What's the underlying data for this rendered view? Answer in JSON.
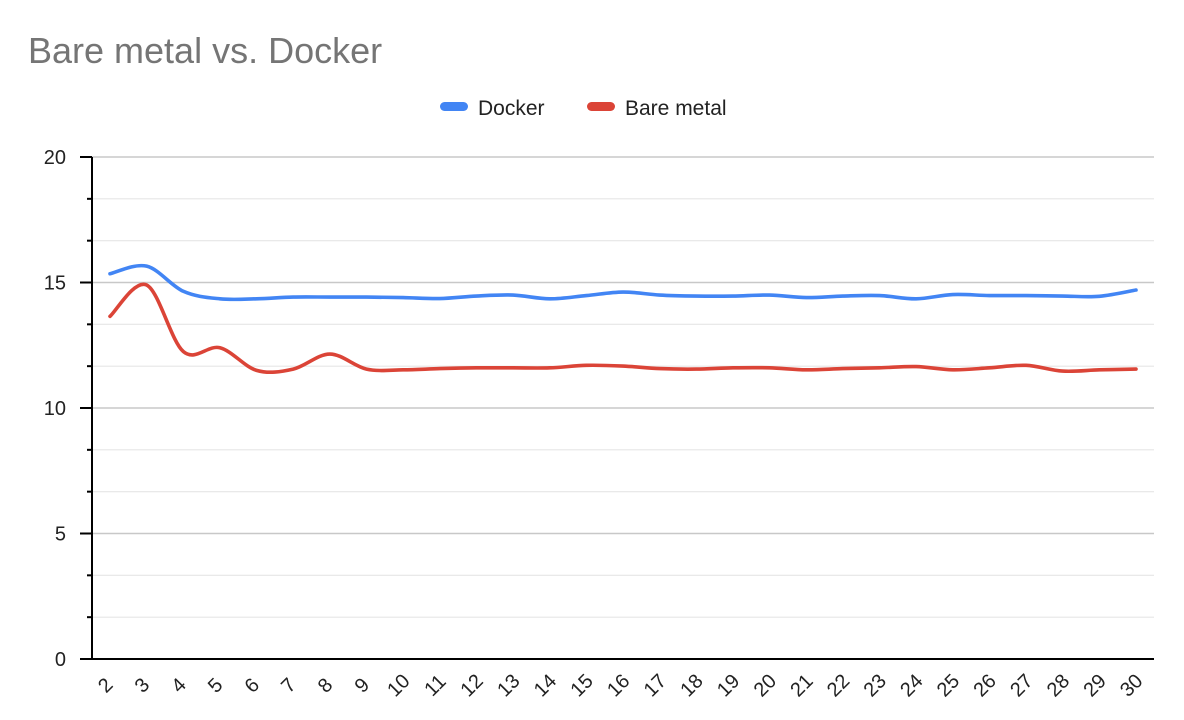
{
  "chart_data": {
    "type": "line",
    "title": "Bare metal vs. Docker",
    "xlabel": "",
    "ylabel": "",
    "ylim": [
      0,
      20
    ],
    "yticks": [
      0,
      5,
      10,
      15,
      20
    ],
    "y_minor_step": 1.666667,
    "grid": true,
    "legend": "top-center",
    "x": [
      2,
      3,
      4,
      5,
      6,
      7,
      8,
      9,
      10,
      11,
      12,
      13,
      14,
      15,
      16,
      17,
      18,
      19,
      20,
      21,
      22,
      23,
      24,
      25,
      26,
      27,
      28,
      29,
      30
    ],
    "series": [
      {
        "name": "Docker",
        "color": "#4285f4",
        "values": [
          15.35,
          15.65,
          14.65,
          14.35,
          14.35,
          14.42,
          14.42,
          14.42,
          14.4,
          14.36,
          14.46,
          14.5,
          14.35,
          14.48,
          14.62,
          14.5,
          14.46,
          14.46,
          14.5,
          14.4,
          14.46,
          14.48,
          14.35,
          14.52,
          14.48,
          14.48,
          14.46,
          14.45,
          14.7
        ]
      },
      {
        "name": "Bare metal",
        "color": "#db4437",
        "values": [
          13.65,
          14.9,
          12.25,
          12.4,
          11.5,
          11.55,
          12.15,
          11.55,
          11.52,
          11.57,
          11.6,
          11.6,
          11.6,
          11.7,
          11.67,
          11.57,
          11.55,
          11.6,
          11.6,
          11.52,
          11.57,
          11.6,
          11.65,
          11.52,
          11.6,
          11.7,
          11.47,
          11.52,
          11.55
        ]
      }
    ]
  }
}
